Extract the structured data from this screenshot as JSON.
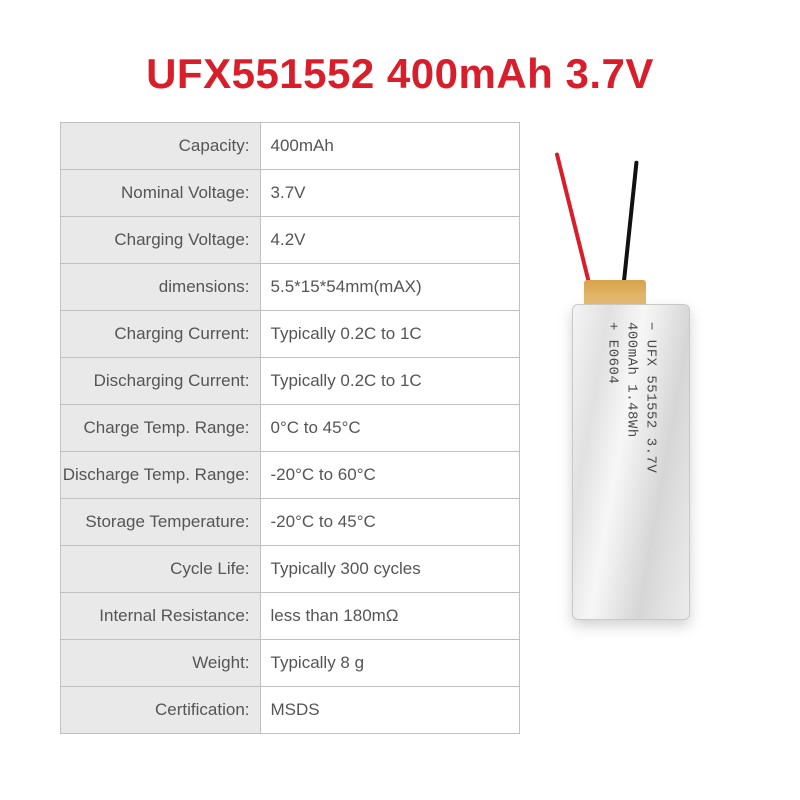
{
  "title": "UFX551552 400mAh 3.7V",
  "colors": {
    "accent": "#d81e2a",
    "label_bg": "#e9e9e9",
    "border": "#c0c0c0",
    "text": "#555555",
    "wire_red": "#d81e2a",
    "wire_black": "#111111"
  },
  "specs": [
    {
      "label": "Capacity:",
      "value": "400mAh"
    },
    {
      "label": "Nominal Voltage:",
      "value": "3.7V"
    },
    {
      "label": "Charging Voltage:",
      "value": "4.2V"
    },
    {
      "label": "dimensions:",
      "value": "5.5*15*54mm(mAX)"
    },
    {
      "label": "Charging Current:",
      "value": "Typically 0.2C to 1C"
    },
    {
      "label": "Discharging Current:",
      "value": "Typically 0.2C to 1C"
    },
    {
      "label": "Charge Temp. Range:",
      "value": "0°C to 45°C"
    },
    {
      "label": "Discharge Temp. Range:",
      "value": "-20°C to 60°C"
    },
    {
      "label": "Storage Temperature:",
      "value": "-20°C to 45°C"
    },
    {
      "label": "Cycle Life:",
      "value": "Typically 300 cycles"
    },
    {
      "label": "Internal Resistance:",
      "value": "less than 180mΩ"
    },
    {
      "label": "Weight:",
      "value": "Typically 8 g"
    },
    {
      "label": "Certification:",
      "value": "MSDS"
    }
  ],
  "battery_label": {
    "line1": "− UFX 551552 3.7V",
    "line2": "  400mAh 1.48Wh",
    "line3": "+ E0604"
  }
}
